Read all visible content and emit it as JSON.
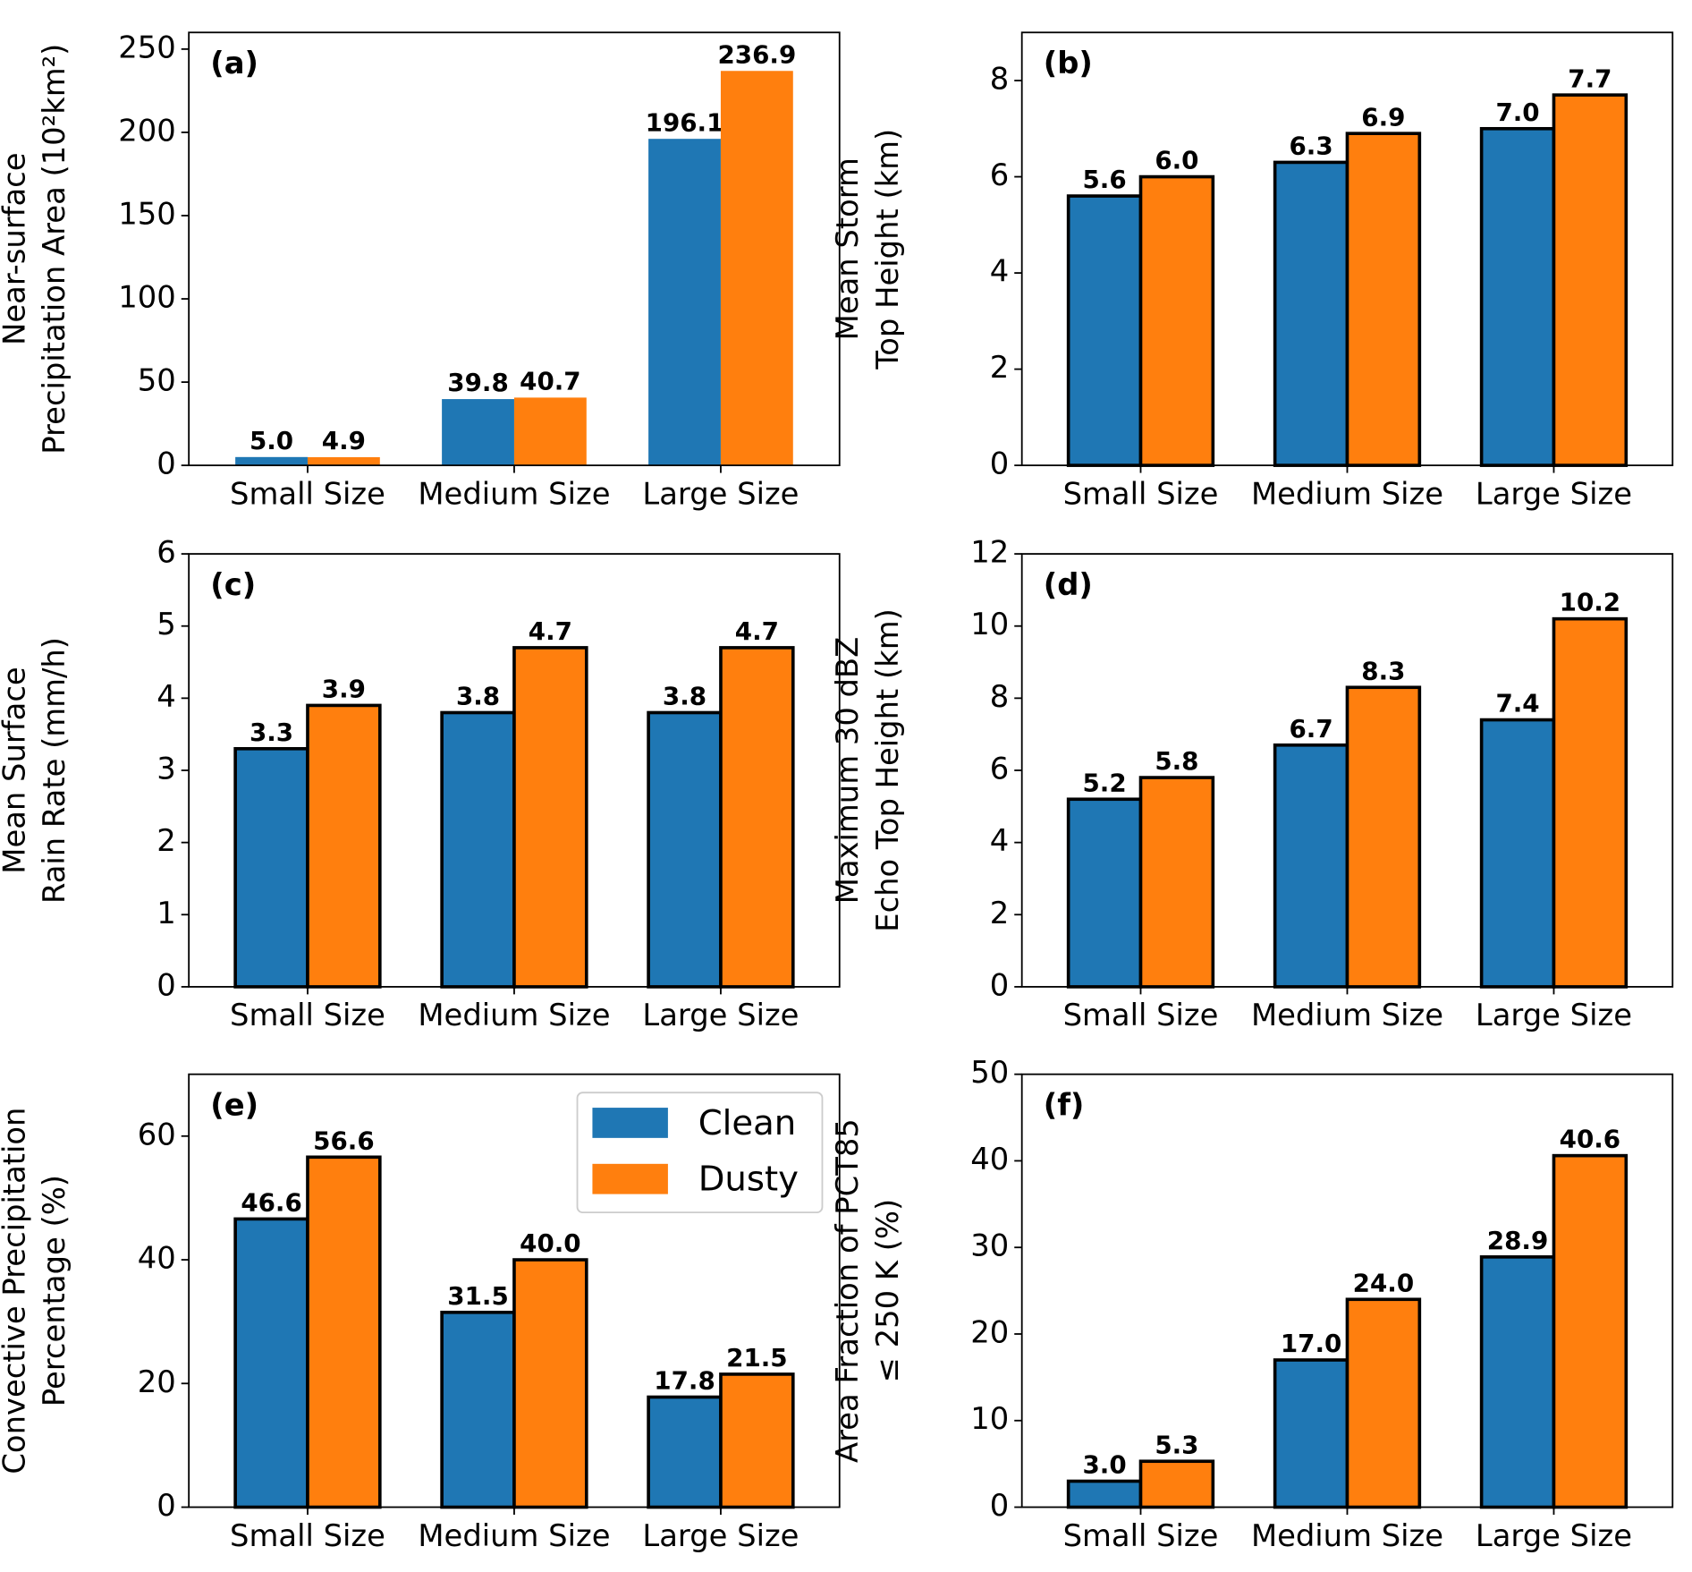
{
  "chart_data": [
    {
      "type": "bar",
      "panel_label": "(a)",
      "ylabel": [
        "Near-surface",
        "Precipitation Area (10²km²)"
      ],
      "categories": [
        "Small Size",
        "Medium Size",
        "Large Size"
      ],
      "series": [
        {
          "name": "Clean",
          "color": "#1f77b4",
          "values": [
            5.0,
            39.8,
            196.1
          ],
          "value_labels": [
            "5.0",
            "39.8",
            "196.1"
          ]
        },
        {
          "name": "Dusty",
          "color": "#ff7f0e",
          "values": [
            4.9,
            40.7,
            236.9
          ],
          "value_labels": [
            "4.9",
            "40.7",
            "236.9"
          ]
        }
      ],
      "ylim": [
        0,
        260
      ],
      "yticks": [
        0,
        50,
        100,
        150,
        200,
        250
      ]
    },
    {
      "type": "bar",
      "panel_label": "(b)",
      "ylabel": [
        "Mean Storm",
        "Top Height (km)"
      ],
      "categories": [
        "Small Size",
        "Medium Size",
        "Large Size"
      ],
      "series": [
        {
          "name": "Clean",
          "color": "#1f77b4",
          "values": [
            5.6,
            6.3,
            7.0
          ],
          "value_labels": [
            "5.6",
            "6.3",
            "7.0"
          ]
        },
        {
          "name": "Dusty",
          "color": "#ff7f0e",
          "values": [
            6.0,
            6.9,
            7.7
          ],
          "value_labels": [
            "6.0",
            "6.9",
            "7.7"
          ]
        }
      ],
      "ylim": [
        0,
        9
      ],
      "yticks": [
        0,
        2,
        4,
        6,
        8
      ],
      "edgecolor": "#000000"
    },
    {
      "type": "bar",
      "panel_label": "(c)",
      "ylabel": [
        "Mean Surface",
        "Rain Rate (mm/h)"
      ],
      "categories": [
        "Small Size",
        "Medium Size",
        "Large Size"
      ],
      "series": [
        {
          "name": "Clean",
          "color": "#1f77b4",
          "values": [
            3.3,
            3.8,
            3.8
          ],
          "value_labels": [
            "3.3",
            "3.8",
            "3.8"
          ]
        },
        {
          "name": "Dusty",
          "color": "#ff7f0e",
          "values": [
            3.9,
            4.7,
            4.7
          ],
          "value_labels": [
            "3.9",
            "4.7",
            "4.7"
          ]
        }
      ],
      "ylim": [
        0,
        6
      ],
      "yticks": [
        0,
        1,
        2,
        3,
        4,
        5,
        6
      ],
      "edgecolor": "#000000"
    },
    {
      "type": "bar",
      "panel_label": "(d)",
      "ylabel": [
        "Maximum 30 dBZ",
        "Echo Top Height (km)"
      ],
      "categories": [
        "Small Size",
        "Medium Size",
        "Large Size"
      ],
      "series": [
        {
          "name": "Clean",
          "color": "#1f77b4",
          "values": [
            5.2,
            6.7,
            7.4
          ],
          "value_labels": [
            "5.2",
            "6.7",
            "7.4"
          ]
        },
        {
          "name": "Dusty",
          "color": "#ff7f0e",
          "values": [
            5.8,
            8.3,
            10.2
          ],
          "value_labels": [
            "5.8",
            "8.3",
            "10.2"
          ]
        }
      ],
      "ylim": [
        0,
        12
      ],
      "yticks": [
        0,
        2,
        4,
        6,
        8,
        10,
        12
      ],
      "edgecolor": "#000000"
    },
    {
      "type": "bar",
      "panel_label": "(e)",
      "ylabel": [
        "Convective Precipitation",
        "Percentage (%)"
      ],
      "categories": [
        "Small Size",
        "Medium Size",
        "Large Size"
      ],
      "series": [
        {
          "name": "Clean",
          "color": "#1f77b4",
          "values": [
            46.6,
            31.5,
            17.8
          ],
          "value_labels": [
            "46.6",
            "31.5",
            "17.8"
          ]
        },
        {
          "name": "Dusty",
          "color": "#ff7f0e",
          "values": [
            56.6,
            40.0,
            21.5
          ],
          "value_labels": [
            "56.6",
            "40.0",
            "21.5"
          ]
        }
      ],
      "ylim": [
        0,
        70
      ],
      "yticks": [
        0,
        20,
        40,
        60
      ],
      "edgecolor": "#000000",
      "legend": "upper right"
    },
    {
      "type": "bar",
      "panel_label": "(f)",
      "ylabel": [
        "Area Fraction of PCT85",
        "≤ 250 K (%)"
      ],
      "categories": [
        "Small Size",
        "Medium Size",
        "Large Size"
      ],
      "series": [
        {
          "name": "Clean",
          "color": "#1f77b4",
          "values": [
            3.0,
            17.0,
            28.9
          ],
          "value_labels": [
            "3.0",
            "17.0",
            "28.9"
          ]
        },
        {
          "name": "Dusty",
          "color": "#ff7f0e",
          "values": [
            5.3,
            24.0,
            40.6
          ],
          "value_labels": [
            "5.3",
            "24.0",
            "40.6"
          ]
        }
      ],
      "ylim": [
        0,
        50
      ],
      "yticks": [
        0,
        10,
        20,
        30,
        40,
        50
      ],
      "edgecolor": "#000000"
    }
  ]
}
